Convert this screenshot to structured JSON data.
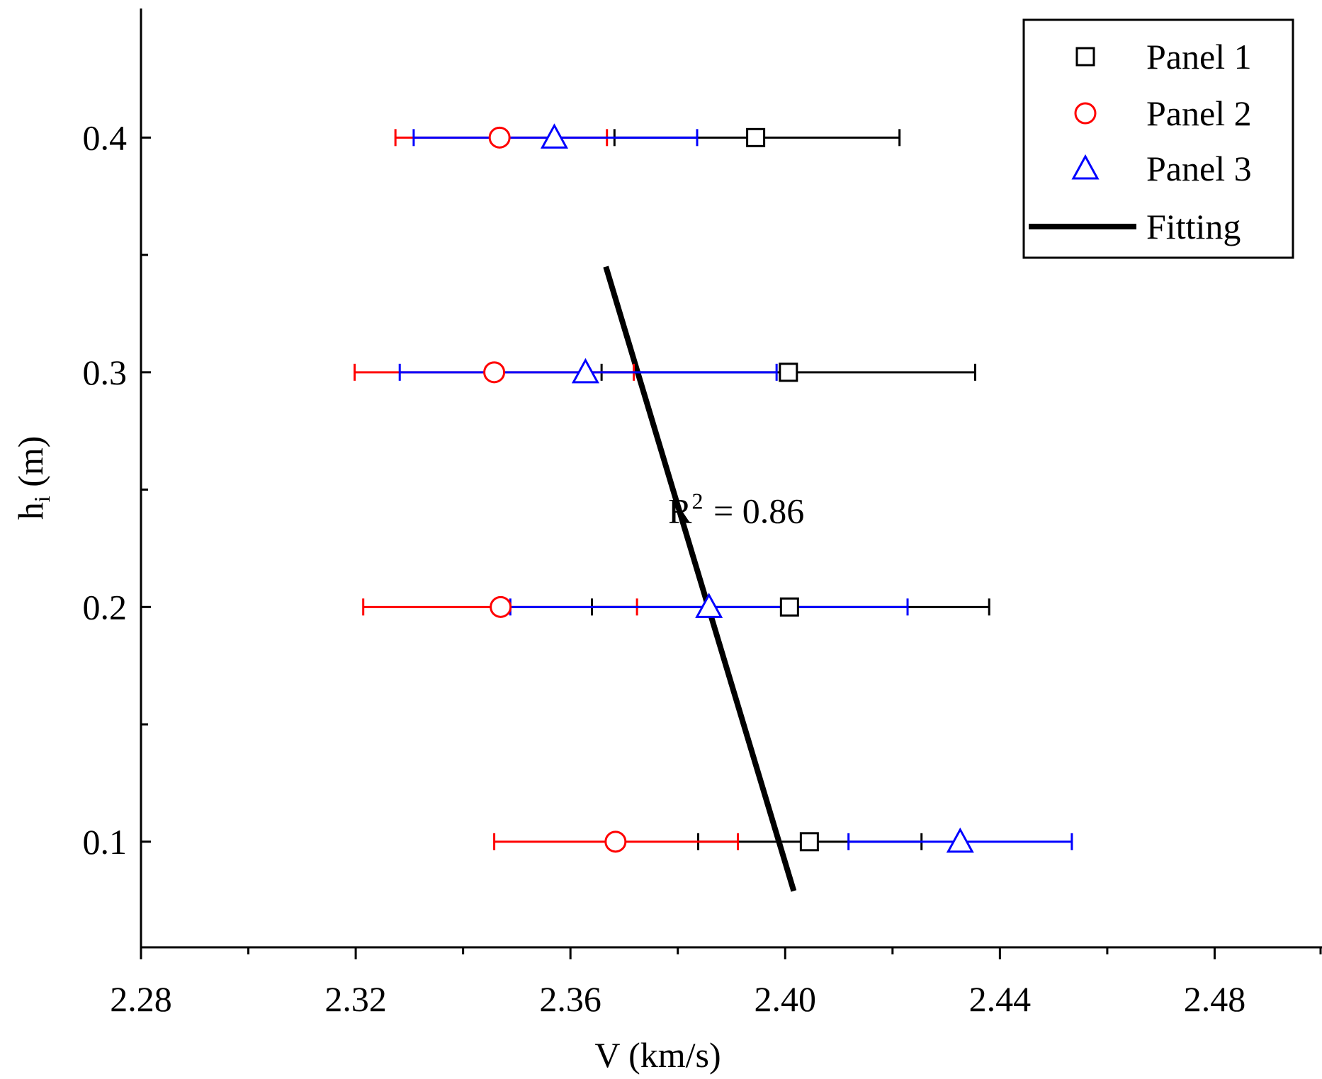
{
  "chart_data": {
    "type": "scatter",
    "title": "",
    "xlabel": "V (km/s)",
    "ylabel": {
      "base": "h",
      "sub": "i",
      "unit": " (m)"
    },
    "xlim": [
      2.28,
      2.5
    ],
    "ylim": [
      0.055,
      0.455
    ],
    "xticks": [
      2.28,
      2.32,
      2.36,
      2.4,
      2.44,
      2.48
    ],
    "xtick_labels": [
      "2.28",
      "2.32",
      "2.36",
      "2.40",
      "2.44",
      "2.48"
    ],
    "xminor": [
      2.3,
      2.34,
      2.38,
      2.42,
      2.46,
      2.5
    ],
    "yticks": [
      0.1,
      0.2,
      0.3,
      0.4
    ],
    "ytick_labels": [
      "0.1",
      "0.2",
      "0.3",
      "0.4"
    ],
    "yminor": [
      0.15,
      0.25,
      0.35
    ],
    "grid": false,
    "legend_position": "top-right",
    "series": [
      {
        "name": "Panel 1",
        "marker": "square",
        "color": "#000000",
        "points": [
          {
            "x": 2.3945,
            "y": 0.4,
            "xerr_low": 2.3682,
            "xerr_high": 2.4213
          },
          {
            "x": 2.4006,
            "y": 0.3,
            "xerr_low": 2.3658,
            "xerr_high": 2.4354
          },
          {
            "x": 2.4008,
            "y": 0.2,
            "xerr_low": 2.364,
            "xerr_high": 2.438
          },
          {
            "x": 2.4045,
            "y": 0.1,
            "xerr_low": 2.3838,
            "xerr_high": 2.4254
          }
        ]
      },
      {
        "name": "Panel 2",
        "marker": "circle",
        "color": "#ff0000",
        "points": [
          {
            "x": 2.3468,
            "y": 0.4,
            "xerr_low": 2.3274,
            "xerr_high": 2.3668
          },
          {
            "x": 2.3458,
            "y": 0.3,
            "xerr_low": 2.3198,
            "xerr_high": 2.3718
          },
          {
            "x": 2.347,
            "y": 0.2,
            "xerr_low": 2.3214,
            "xerr_high": 2.3724
          },
          {
            "x": 2.3684,
            "y": 0.1,
            "xerr_low": 2.3458,
            "xerr_high": 2.3912
          }
        ]
      },
      {
        "name": "Panel 3",
        "marker": "triangle",
        "color": "#0000ff",
        "points": [
          {
            "x": 2.357,
            "y": 0.4,
            "xerr_low": 2.3308,
            "xerr_high": 2.3836
          },
          {
            "x": 2.3628,
            "y": 0.3,
            "xerr_low": 2.3282,
            "xerr_high": 2.3984
          },
          {
            "x": 2.3858,
            "y": 0.2,
            "xerr_low": 2.3488,
            "xerr_high": 2.4228
          },
          {
            "x": 2.4326,
            "y": 0.1,
            "xerr_low": 2.4118,
            "xerr_high": 2.4534
          }
        ]
      }
    ],
    "fit_line": {
      "name": "Fitting",
      "color": "#000000",
      "start": {
        "x": 2.3666,
        "y": 0.345
      },
      "end": {
        "x": 2.4016,
        "y": 0.079
      }
    },
    "annotation": {
      "base": "R",
      "sup": "2",
      "rest": " = 0.86",
      "x": 2.3955,
      "y": 0.241
    }
  }
}
